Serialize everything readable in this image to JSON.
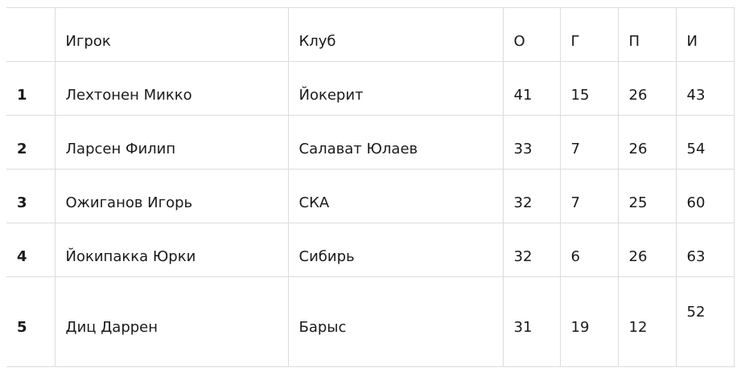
{
  "table": {
    "headers": [
      "",
      "Игрок",
      "Клуб",
      "О",
      "Г",
      "П",
      "И"
    ],
    "rows": [
      [
        "1",
        "Лехтонен Микко",
        "Йокерит",
        "41",
        "15",
        "26",
        "43"
      ],
      [
        "2",
        "Ларсен Филип",
        "Салават Юлаев",
        "33",
        "7",
        "26",
        "54"
      ],
      [
        "3",
        "Ожиганов Игорь",
        "СКА",
        "32",
        "7",
        "25",
        "60"
      ],
      [
        "4",
        "Йокипакка Юрки",
        "Сибирь",
        "32",
        "6",
        "26",
        "63"
      ],
      [
        "5",
        "Диц Даррен",
        "Барыс",
        "31",
        "19",
        "12",
        "52"
      ]
    ]
  }
}
